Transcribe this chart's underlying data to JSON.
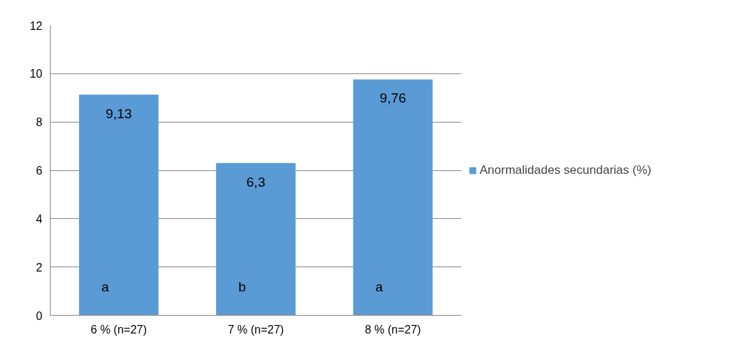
{
  "chart_data": {
    "type": "bar",
    "categories": [
      "6 % (n=27)",
      "7 % (n=27)",
      "8 % (n=27)"
    ],
    "series": [
      {
        "name": "Anormalidades secundarias (%)",
        "color": "#5b9bd5",
        "values": [
          9.13,
          6.3,
          9.76
        ],
        "value_labels": [
          "9,13",
          "6,3",
          "9,76"
        ]
      }
    ],
    "ylim": [
      0,
      12
    ],
    "yticks": [
      0,
      2,
      4,
      6,
      8,
      10,
      12
    ],
    "grid": "y",
    "legend": "right",
    "annotations": [
      "a",
      "b",
      "a"
    ]
  }
}
